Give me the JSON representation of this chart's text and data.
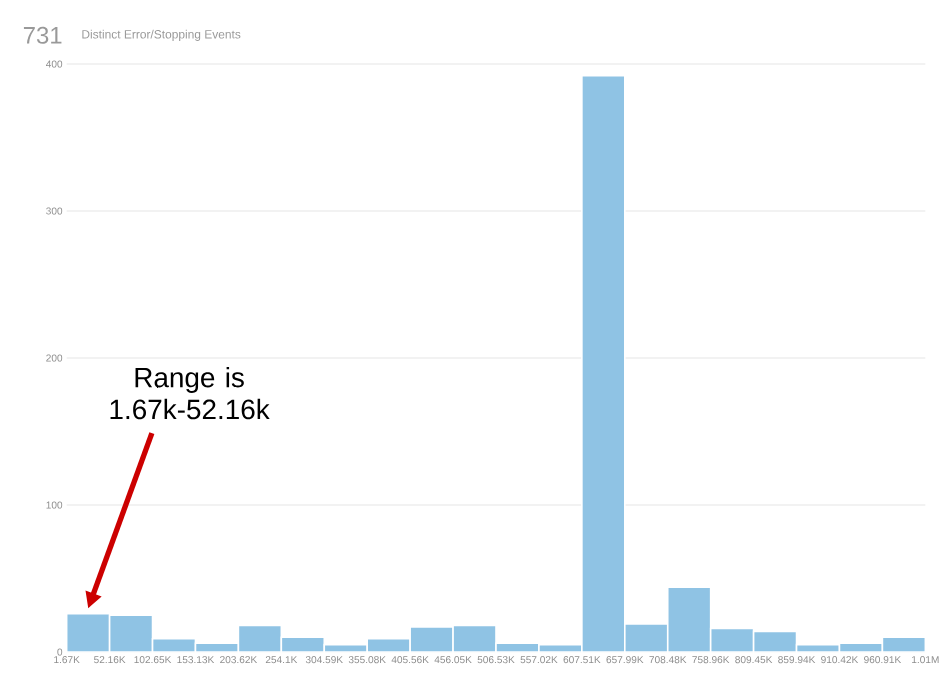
{
  "chart_data": {
    "type": "histogram",
    "title": "731",
    "subtitle": "Distinct Error/Stopping Events",
    "bins": [
      1670,
      52160,
      102650,
      153130,
      203620,
      254100,
      304590,
      355080,
      405560,
      456050,
      506530,
      557020,
      607510,
      657990,
      708480,
      758960,
      809450,
      859940,
      910420,
      960910,
      1011400
    ],
    "values": [
      26,
      25,
      9,
      6,
      18,
      10,
      5,
      9,
      17,
      18,
      6,
      5,
      392,
      19,
      44,
      16,
      14,
      5,
      6,
      10
    ],
    "color": "#8fc3e4",
    "xlim": [
      1670,
      1011400
    ],
    "xticks": [
      {
        "value": 1670,
        "label": "1.67K"
      },
      {
        "value": 52160,
        "label": "52.16K"
      },
      {
        "value": 102650,
        "label": "102.65K"
      },
      {
        "value": 153130,
        "label": "153.13K"
      },
      {
        "value": 203620,
        "label": "203.62K"
      },
      {
        "value": 254100,
        "label": "254.1K"
      },
      {
        "value": 304590,
        "label": "304.59K"
      },
      {
        "value": 355080,
        "label": "355.08K"
      },
      {
        "value": 405560,
        "label": "405.56K"
      },
      {
        "value": 456050,
        "label": "456.05K"
      },
      {
        "value": 506530,
        "label": "506.53K"
      },
      {
        "value": 557020,
        "label": "557.02K"
      },
      {
        "value": 607510,
        "label": "607.51K"
      },
      {
        "value": 657990,
        "label": "657.99K"
      },
      {
        "value": 708480,
        "label": "708.48K"
      },
      {
        "value": 758960,
        "label": "758.96K"
      },
      {
        "value": 809450,
        "label": "809.45K"
      },
      {
        "value": 859940,
        "label": "859.94K"
      },
      {
        "value": 910420,
        "label": "910.42K"
      },
      {
        "value": 960910,
        "label": "960.91K"
      },
      {
        "value": 1011400,
        "label": "1.01M"
      }
    ],
    "ylim": [
      0,
      400
    ],
    "yticks": [
      0,
      100,
      200,
      300,
      400
    ],
    "grid": "y",
    "annotations": [
      "Range is 1.67k-52.16k"
    ]
  }
}
